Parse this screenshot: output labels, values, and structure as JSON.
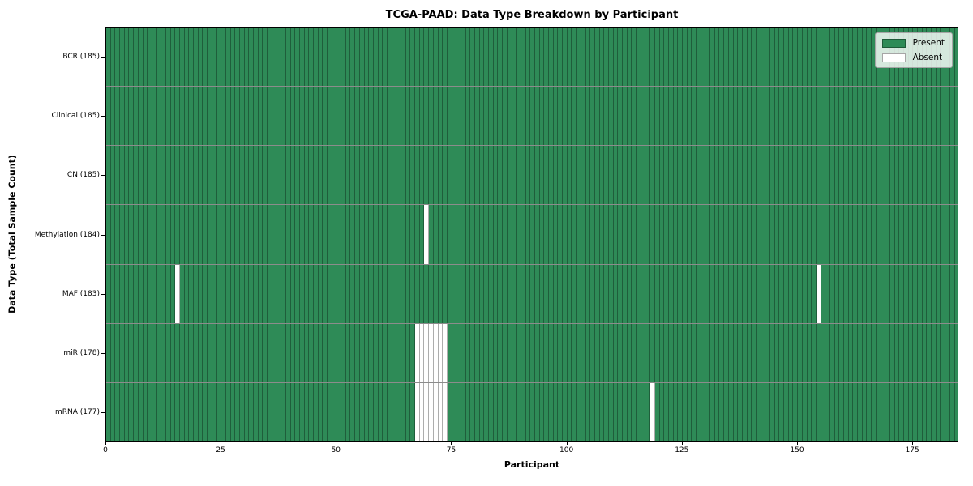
{
  "title": "TCGA-PAAD: Data Type Breakdown by Participant",
  "axes": {
    "xlabel": "Participant",
    "ylabel": "Data Type (Total Sample Count)"
  },
  "legend": {
    "present_label": "Present",
    "absent_label": "Absent"
  },
  "colors": {
    "present": "#2e8b57",
    "absent": "#ffffff",
    "cell_edge": "rgba(0,0,0,0.32)",
    "row_divider": "rgba(0,0,0,0.45)",
    "spine": "#000000"
  },
  "chart_data": {
    "type": "heatmap",
    "title": "TCGA-PAAD: Data Type Breakdown by Participant",
    "xlabel": "Participant",
    "ylabel": "Data Type (Total Sample Count)",
    "legend_entries": [
      "Present",
      "Absent"
    ],
    "legend_position": "upper right",
    "grid": false,
    "n_participants": 185,
    "xlim": [
      0,
      185
    ],
    "x_ticks": [
      0,
      25,
      50,
      75,
      100,
      125,
      150,
      175
    ],
    "rows": [
      {
        "label": "BCR (185)",
        "data_type": "BCR",
        "present_count": 185,
        "absent_participants": []
      },
      {
        "label": "Clinical (185)",
        "data_type": "Clinical",
        "present_count": 185,
        "absent_participants": []
      },
      {
        "label": "CN (185)",
        "data_type": "CN",
        "present_count": 185,
        "absent_participants": []
      },
      {
        "label": "Methylation (184)",
        "data_type": "Methylation",
        "present_count": 184,
        "absent_participants": [
          69
        ]
      },
      {
        "label": "MAF (183)",
        "data_type": "MAF",
        "present_count": 183,
        "absent_participants": [
          15,
          154
        ]
      },
      {
        "label": "miR (178)",
        "data_type": "miR",
        "present_count": 178,
        "absent_participants": [
          67,
          68,
          69,
          70,
          71,
          72,
          73
        ]
      },
      {
        "label": "mRNA (177)",
        "data_type": "mRNA",
        "present_count": 177,
        "absent_participants": [
          67,
          68,
          69,
          70,
          71,
          72,
          73,
          118
        ]
      }
    ]
  }
}
